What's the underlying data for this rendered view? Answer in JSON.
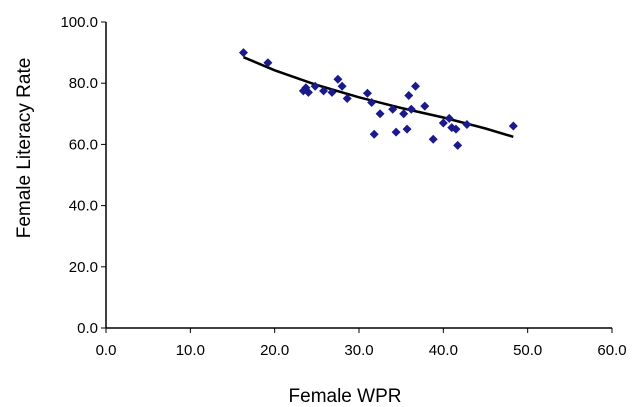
{
  "chart_data": {
    "type": "scatter",
    "title": "",
    "xlabel": "Female  WPR",
    "ylabel": "Female Literacy Rate",
    "xlim": [
      0,
      60
    ],
    "ylim": [
      0,
      100
    ],
    "x_ticks": [
      "0.0",
      "10.0",
      "20.0",
      "30.0",
      "40.0",
      "50.0",
      "60.0"
    ],
    "y_ticks": [
      "0.0",
      "20.0",
      "40.0",
      "60.0",
      "80.0",
      "100.0"
    ],
    "grid": false,
    "legend": "none",
    "marker_color": "#1a1a8c",
    "trendline_color": "#000000",
    "points": [
      {
        "x": 16.3,
        "y": 90.0
      },
      {
        "x": 19.2,
        "y": 86.7
      },
      {
        "x": 23.4,
        "y": 77.5
      },
      {
        "x": 23.7,
        "y": 78.5
      },
      {
        "x": 24.0,
        "y": 77.0
      },
      {
        "x": 24.8,
        "y": 79.0
      },
      {
        "x": 25.8,
        "y": 77.5
      },
      {
        "x": 26.8,
        "y": 77.0
      },
      {
        "x": 27.5,
        "y": 81.3
      },
      {
        "x": 28.0,
        "y": 79.0
      },
      {
        "x": 28.6,
        "y": 75.0
      },
      {
        "x": 31.0,
        "y": 76.7
      },
      {
        "x": 31.5,
        "y": 73.7
      },
      {
        "x": 31.8,
        "y": 63.3
      },
      {
        "x": 32.5,
        "y": 70.0
      },
      {
        "x": 34.0,
        "y": 71.5
      },
      {
        "x": 34.4,
        "y": 64.0
      },
      {
        "x": 35.3,
        "y": 70.0
      },
      {
        "x": 35.7,
        "y": 65.0
      },
      {
        "x": 35.9,
        "y": 76.0
      },
      {
        "x": 36.2,
        "y": 71.5
      },
      {
        "x": 36.7,
        "y": 79.0
      },
      {
        "x": 37.8,
        "y": 72.5
      },
      {
        "x": 38.8,
        "y": 61.7
      },
      {
        "x": 40.0,
        "y": 67.0
      },
      {
        "x": 40.7,
        "y": 68.5
      },
      {
        "x": 41.0,
        "y": 65.5
      },
      {
        "x": 41.5,
        "y": 65.0
      },
      {
        "x": 41.7,
        "y": 59.7
      },
      {
        "x": 42.8,
        "y": 66.5
      },
      {
        "x": 48.3,
        "y": 66.0
      }
    ],
    "trendline": {
      "type": "power",
      "x": [
        16.3,
        20,
        25,
        30,
        35,
        40,
        45,
        48.3
      ],
      "y": [
        88.5,
        84.2,
        79.4,
        75.4,
        71.9,
        68.8,
        65.2,
        62.5
      ]
    }
  }
}
